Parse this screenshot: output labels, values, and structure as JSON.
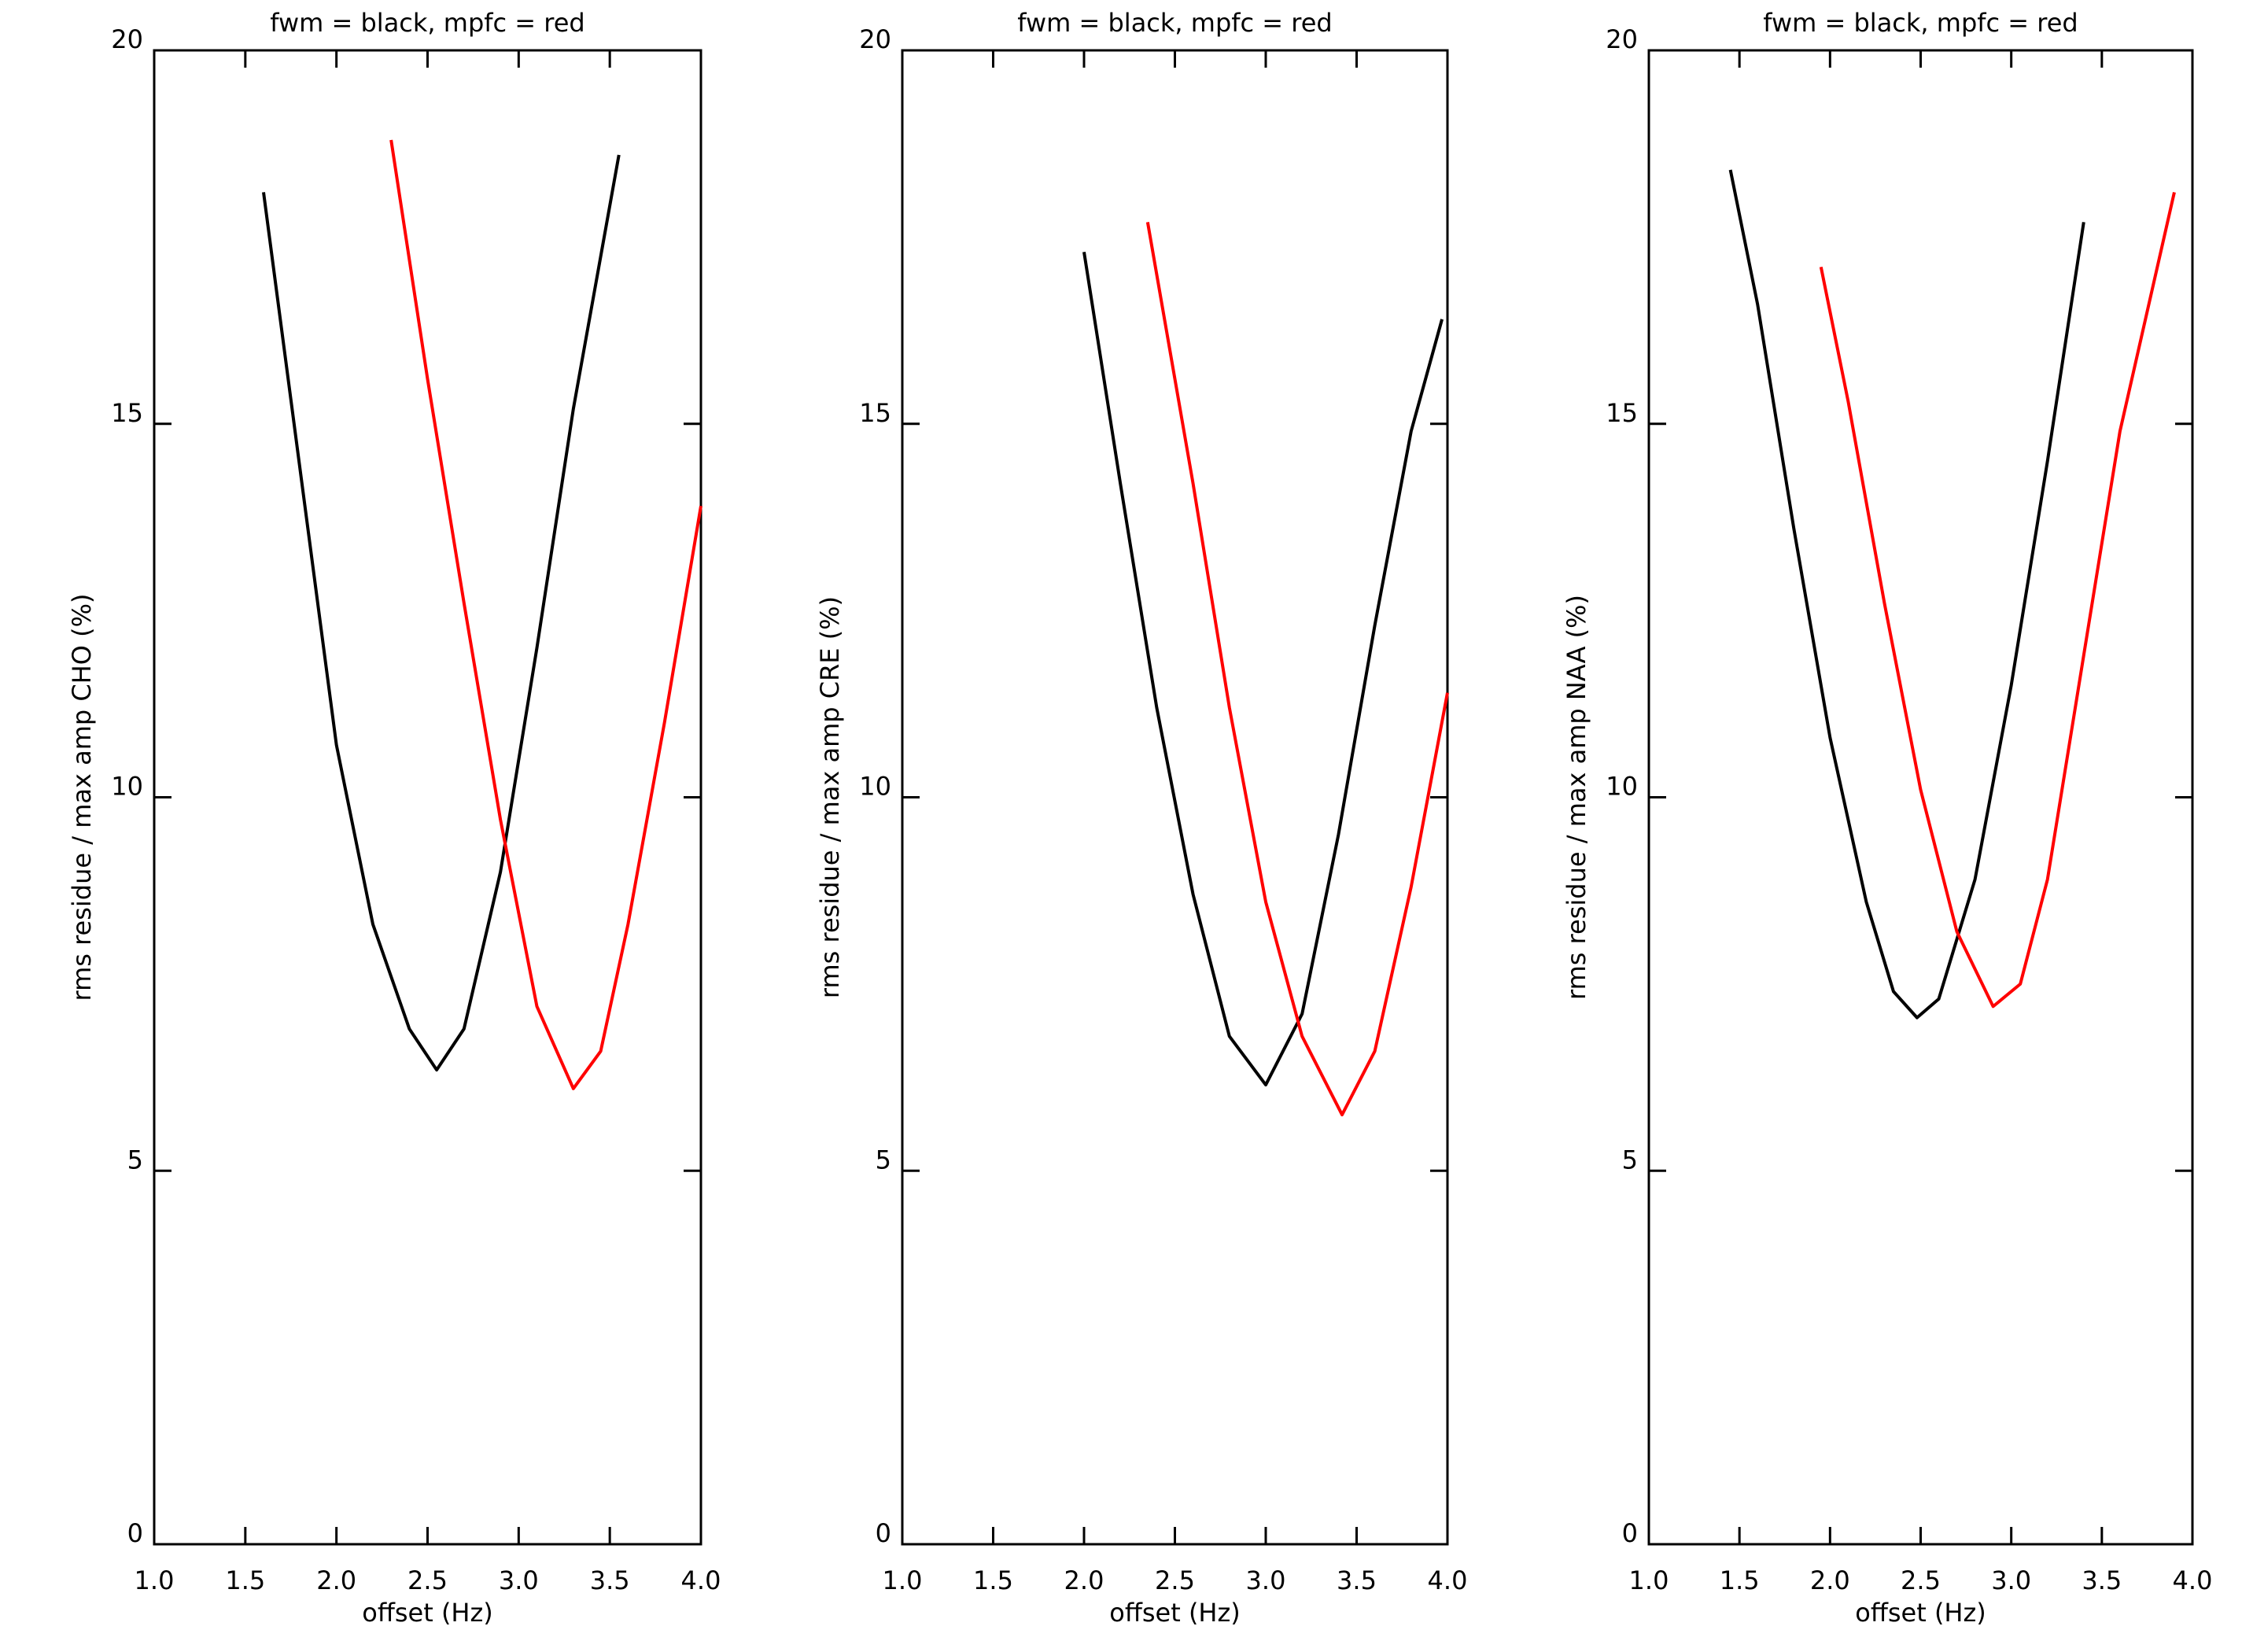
{
  "chart_data": [
    {
      "type": "line",
      "title": "fwm = black, mpfc = red",
      "xlabel": "offset (Hz)",
      "ylabel": "rms residue / max amp CHO (%)",
      "xlim": [
        1.0,
        4.0
      ],
      "ylim": [
        0,
        20
      ],
      "xticks": [
        {
          "value": 1.0,
          "label": "1.0"
        },
        {
          "value": 1.5,
          "label": "1.5"
        },
        {
          "value": 2.0,
          "label": "2.0"
        },
        {
          "value": 2.5,
          "label": "2.5"
        },
        {
          "value": 3.0,
          "label": "3.0"
        },
        {
          "value": 3.5,
          "label": "3.5"
        },
        {
          "value": 4.0,
          "label": "4.0"
        }
      ],
      "yticks": [
        0,
        5,
        10,
        15,
        20
      ],
      "series": [
        {
          "color": "#000000",
          "x": [
            1.6,
            1.8,
            2.0,
            2.2,
            2.4,
            2.55,
            2.7,
            2.9,
            3.1,
            3.3,
            3.55
          ],
          "values": [
            18.1,
            14.4,
            10.7,
            8.3,
            6.9,
            6.35,
            6.9,
            9.0,
            12.0,
            15.2,
            18.6
          ]
        },
        {
          "color": "#ff0000",
          "x": [
            2.3,
            2.5,
            2.7,
            2.9,
            3.1,
            3.3,
            3.45,
            3.6,
            3.8,
            4.0
          ],
          "values": [
            18.8,
            15.6,
            12.6,
            9.7,
            7.2,
            6.1,
            6.6,
            8.3,
            11.0,
            13.9
          ]
        }
      ]
    },
    {
      "type": "line",
      "title": "fwm = black, mpfc = red",
      "xlabel": "offset (Hz)",
      "ylabel": "rms residue / max amp CRE (%)",
      "xlim": [
        1.0,
        4.0
      ],
      "ylim": [
        0,
        20
      ],
      "xticks": [
        {
          "value": 1.0,
          "label": "1.0"
        },
        {
          "value": 1.5,
          "label": "1.5"
        },
        {
          "value": 2.0,
          "label": "2.0"
        },
        {
          "value": 2.5,
          "label": "2.5"
        },
        {
          "value": 3.0,
          "label": "3.0"
        },
        {
          "value": 3.5,
          "label": "3.5"
        },
        {
          "value": 4.0,
          "label": "4.0"
        }
      ],
      "yticks": [
        0,
        5,
        10,
        15,
        20
      ],
      "series": [
        {
          "color": "#000000",
          "x": [
            2.0,
            2.2,
            2.4,
            2.6,
            2.8,
            3.0,
            3.2,
            3.4,
            3.6,
            3.8,
            3.97
          ],
          "values": [
            17.3,
            14.2,
            11.2,
            8.7,
            6.8,
            6.15,
            7.1,
            9.5,
            12.3,
            14.9,
            16.4
          ]
        },
        {
          "color": "#ff0000",
          "x": [
            2.35,
            2.6,
            2.8,
            3.0,
            3.2,
            3.42,
            3.6,
            3.8,
            4.0
          ],
          "values": [
            17.7,
            14.2,
            11.2,
            8.6,
            6.8,
            5.75,
            6.6,
            8.8,
            11.4
          ]
        }
      ]
    },
    {
      "type": "line",
      "title": "fwm = black, mpfc = red",
      "xlabel": "offset (Hz)",
      "ylabel": "rms residue / max amp NAA (%)",
      "xlim": [
        1.0,
        4.0
      ],
      "ylim": [
        0,
        20
      ],
      "xticks": [
        {
          "value": 1.0,
          "label": "1.0"
        },
        {
          "value": 1.5,
          "label": "1.5"
        },
        {
          "value": 2.0,
          "label": "2.0"
        },
        {
          "value": 2.5,
          "label": "2.5"
        },
        {
          "value": 3.0,
          "label": "3.0"
        },
        {
          "value": 3.5,
          "label": "3.5"
        },
        {
          "value": 4.0,
          "label": "4.0"
        }
      ],
      "yticks": [
        0,
        5,
        10,
        15,
        20
      ],
      "series": [
        {
          "color": "#000000",
          "x": [
            1.45,
            1.6,
            1.8,
            2.0,
            2.2,
            2.35,
            2.48,
            2.6,
            2.8,
            3.0,
            3.2,
            3.4
          ],
          "values": [
            18.4,
            16.6,
            13.6,
            10.8,
            8.6,
            7.4,
            7.05,
            7.3,
            8.9,
            11.5,
            14.5,
            17.7
          ]
        },
        {
          "color": "#ff0000",
          "x": [
            1.95,
            2.1,
            2.3,
            2.5,
            2.7,
            2.9,
            3.05,
            3.2,
            3.4,
            3.6,
            3.9
          ],
          "values": [
            17.1,
            15.3,
            12.6,
            10.1,
            8.2,
            7.2,
            7.5,
            8.9,
            11.9,
            14.9,
            18.1
          ]
        }
      ]
    }
  ]
}
